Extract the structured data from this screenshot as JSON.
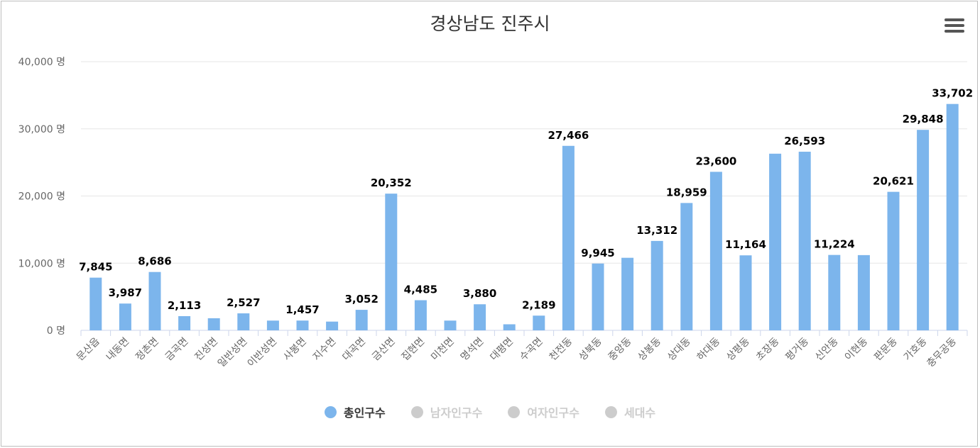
{
  "chart_data": {
    "type": "bar",
    "title": "경상남도 진주시",
    "xlabel": "",
    "ylabel": "",
    "ylim": [
      0,
      40000
    ],
    "y_ticks": [
      "0 명",
      "10,000 명",
      "20,000 명",
      "30,000 명",
      "40,000 명"
    ],
    "y_tick_values": [
      0,
      10000,
      20000,
      30000,
      40000
    ],
    "categories": [
      "문산읍",
      "내동면",
      "정촌면",
      "금곡면",
      "진성면",
      "일반성면",
      "이반성면",
      "사봉면",
      "지수면",
      "대곡면",
      "금산면",
      "집현면",
      "미천면",
      "명석면",
      "대평면",
      "수곡면",
      "천전동",
      "성북동",
      "중앙동",
      "상봉동",
      "상대동",
      "하대동",
      "상평동",
      "초장동",
      "평거동",
      "신안동",
      "이현동",
      "판문동",
      "가호동",
      "충무공동"
    ],
    "series": [
      {
        "name": "총인구수",
        "color": "#7cb5ec",
        "visible": true,
        "values": [
          7845,
          3987,
          8686,
          2113,
          1800,
          2527,
          1450,
          1457,
          1300,
          3052,
          20352,
          4485,
          1450,
          3880,
          900,
          2189,
          27466,
          9945,
          10800,
          13312,
          18959,
          23600,
          11164,
          26300,
          26593,
          11224,
          11200,
          20621,
          29848,
          33702
        ]
      },
      {
        "name": "남자인구수",
        "color": "#cccccc",
        "visible": false
      },
      {
        "name": "여자인구수",
        "color": "#cccccc",
        "visible": false
      },
      {
        "name": "세대수",
        "color": "#cccccc",
        "visible": false
      }
    ],
    "data_labels": [
      "7,845",
      "3,987",
      "8,686",
      "2,113",
      "",
      "2,527",
      "",
      "1,457",
      "",
      "3,052",
      "20,352",
      "4,485",
      "",
      "3,880",
      "",
      "2,189",
      "27,466",
      "9,945",
      "",
      "13,312",
      "18,959",
      "23,600",
      "11,164",
      "",
      "26,593",
      "11,224",
      "",
      "20,621",
      "29,848",
      "33,702"
    ],
    "legend_position": "bottom",
    "grid": true
  },
  "menu": {
    "icon": "hamburger-menu-icon"
  }
}
